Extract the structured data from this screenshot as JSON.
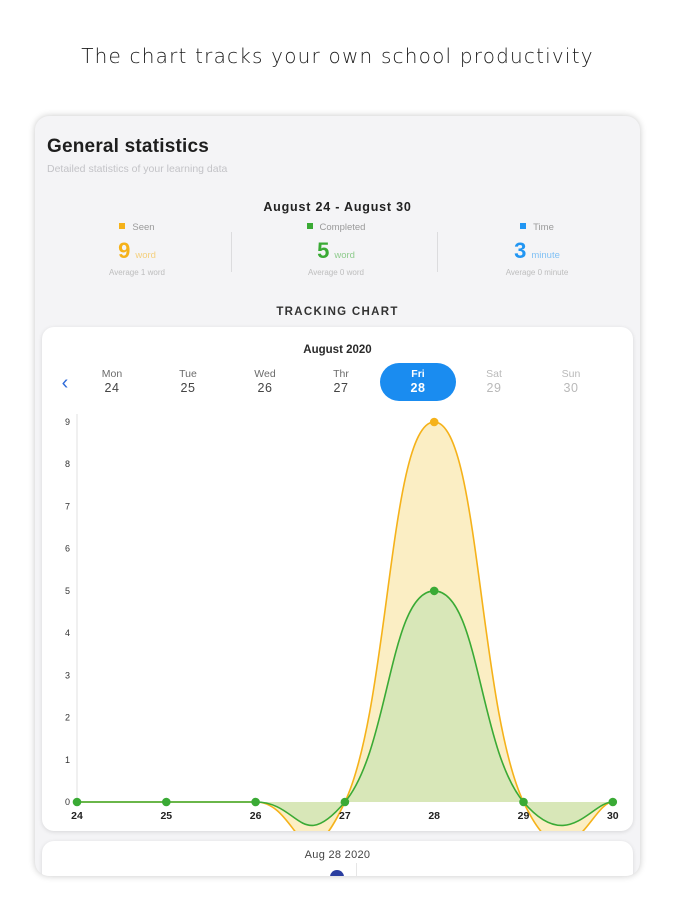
{
  "headline": "The chart tracks your own school productivity",
  "header": {
    "title": "General statistics",
    "subtitle": "Detailed statistics of your learning data"
  },
  "range": "August 24 - August 30",
  "stats": [
    {
      "label": "Seen",
      "value": "9",
      "unit": "word",
      "average": "Average 1 word",
      "color": "#f5b21a"
    },
    {
      "label": "Completed",
      "value": "5",
      "unit": "word",
      "average": "Average 0 word",
      "color": "#3aaa35"
    },
    {
      "label": "Time",
      "value": "3",
      "unit": "minute",
      "average": "Average 0 minute",
      "color": "#2196f3"
    }
  ],
  "tracking_label": "TRACKING CHART",
  "chart_card": {
    "month": "August 2020",
    "back_icon": "chevron-left-icon",
    "days": [
      {
        "name": "Mon",
        "date": "24",
        "state": "normal"
      },
      {
        "name": "Tue",
        "date": "25",
        "state": "normal"
      },
      {
        "name": "Wed",
        "date": "26",
        "state": "normal"
      },
      {
        "name": "Thr",
        "date": "27",
        "state": "normal"
      },
      {
        "name": "Fri",
        "date": "28",
        "state": "selected"
      },
      {
        "name": "Sat",
        "date": "29",
        "state": "muted"
      },
      {
        "name": "Sun",
        "date": "30",
        "state": "muted"
      }
    ],
    "selected_color": "#1a8cf0"
  },
  "chart_data": {
    "type": "area",
    "x": [
      "24",
      "25",
      "26",
      "27",
      "28",
      "29",
      "30"
    ],
    "series": [
      {
        "values": [
          0,
          0,
          0,
          0,
          9,
          0,
          0
        ],
        "color": "#f5b21a",
        "fill": "#fbeec4"
      },
      {
        "values": [
          0,
          0,
          0,
          0,
          5,
          0,
          0
        ],
        "color": "#3aaa35",
        "fill": "#d8e7b8"
      }
    ],
    "yticks": [
      "0",
      "1",
      "2",
      "3",
      "4",
      "5",
      "6",
      "7",
      "8",
      "9"
    ],
    "ylim": [
      0,
      9
    ],
    "smooth": true,
    "grid": false,
    "legend": "none"
  },
  "bottom_card": {
    "date": "Aug 28 2020",
    "dot_color": "#2a3ea0"
  }
}
